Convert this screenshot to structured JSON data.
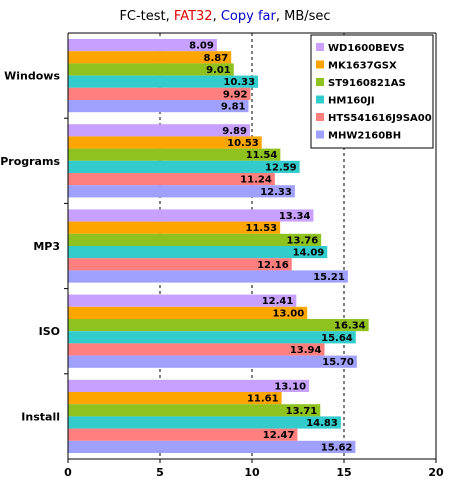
{
  "title_parts": [
    {
      "text": "FC-test, ",
      "color": "#000000"
    },
    {
      "text": "FAT32",
      "color": "#e00000"
    },
    {
      "text": ", ",
      "color": "#000000"
    },
    {
      "text": "Copy far",
      "color": "#0000cc"
    },
    {
      "text": ", MB/sec",
      "color": "#000000"
    }
  ],
  "chart_data": {
    "type": "bar",
    "orientation": "horizontal",
    "title": "FC-test, FAT32, Copy far, MB/sec",
    "categories": [
      "Windows",
      "Programs",
      "MP3",
      "ISO",
      "Install"
    ],
    "series": [
      {
        "name": "WD1600BEVS",
        "color": "#c8a0ff",
        "values": [
          8.09,
          9.89,
          13.34,
          12.41,
          13.1
        ]
      },
      {
        "name": "MK1637GSX",
        "color": "#ffa500",
        "values": [
          8.87,
          10.53,
          11.53,
          13.0,
          11.61
        ]
      },
      {
        "name": "ST9160821AS",
        "color": "#8fc21e",
        "values": [
          9.01,
          11.54,
          13.76,
          16.34,
          13.71
        ]
      },
      {
        "name": "HM160JI",
        "color": "#33cccc",
        "values": [
          10.33,
          12.59,
          14.09,
          15.64,
          14.83
        ]
      },
      {
        "name": "HTS541616J9SA00",
        "color": "#ff7f7f",
        "values": [
          9.92,
          11.24,
          12.16,
          13.94,
          12.47
        ]
      },
      {
        "name": "MHW2160BH",
        "color": "#a0a0ff",
        "values": [
          9.81,
          12.33,
          15.21,
          15.7,
          15.62
        ]
      }
    ],
    "value_labels": [
      [
        "8.09",
        "9.89",
        "13.34",
        "12.41",
        "13.10"
      ],
      [
        "8.87",
        "10.53",
        "11.53",
        "13.00",
        "11.61"
      ],
      [
        "9.01",
        "11.54",
        "13.76",
        "16.34",
        "13.71"
      ],
      [
        "10.33",
        "12.59",
        "14.09",
        "15.64",
        "14.83"
      ],
      [
        "9.92",
        "11.24",
        "12.16",
        "13.94",
        "12.47"
      ],
      [
        "9.81",
        "12.33",
        "15.21",
        "15.70",
        "15.62"
      ]
    ],
    "x_ticks": [
      0,
      5,
      10,
      15,
      20
    ],
    "x_tick_labels": [
      "0",
      "5",
      "10",
      "15",
      "20"
    ],
    "xlim": [
      0,
      20
    ],
    "grid": "vertical dashed",
    "legend_position": "top-right"
  }
}
